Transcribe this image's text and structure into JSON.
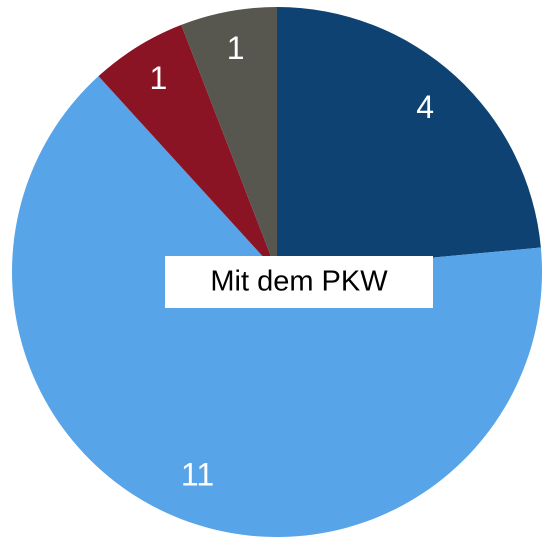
{
  "chart_data": {
    "type": "pie",
    "categories": [
      null,
      "Mit dem PKW",
      null,
      null
    ],
    "values": [
      4,
      11,
      1,
      1
    ],
    "colors": [
      "#0e4272",
      "#58a4e8",
      "#8b1424",
      "#57574f"
    ]
  }
}
